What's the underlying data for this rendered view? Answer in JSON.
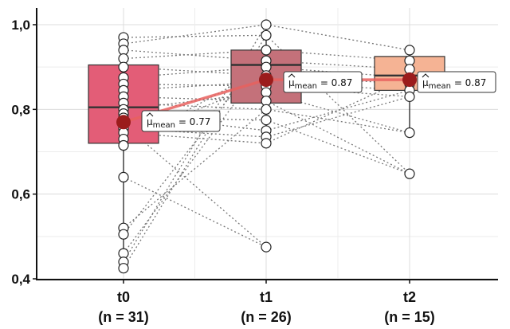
{
  "chart_data": {
    "type": "box",
    "title": "",
    "xlabel": "",
    "ylabel": "",
    "ylim": [
      0.4,
      1.0
    ],
    "yticks": [
      0.4,
      0.6,
      0.8,
      1.0
    ],
    "ytick_labels": [
      "0,4",
      "0,6",
      "0,8",
      "1,0"
    ],
    "grid": true,
    "groups": [
      {
        "label": "t0",
        "n_label": "(n = 31)",
        "color": "#e35d77",
        "whisker_low": 0.43,
        "q1": 0.72,
        "median": 0.805,
        "q3": 0.905,
        "whisker_high": 0.97,
        "mean": 0.77,
        "mean_label_prefix": "μ",
        "mean_label_sub": "mean",
        "mean_label_value": "= 0.77",
        "points": [
          0.97,
          0.955,
          0.94,
          0.92,
          0.9,
          0.875,
          0.86,
          0.845,
          0.83,
          0.815,
          0.8,
          0.79,
          0.78,
          0.765,
          0.755,
          0.745,
          0.73,
          0.715,
          0.64,
          0.52,
          0.505,
          0.46,
          0.44,
          0.425
        ]
      },
      {
        "label": "t1",
        "n_label": "(n = 26)",
        "color": "#c4717a",
        "whisker_low": 0.72,
        "q1": 0.815,
        "median": 0.905,
        "q3": 0.94,
        "whisker_high": 1.0,
        "mean": 0.87,
        "mean_label_prefix": "μ",
        "mean_label_sub": "mean",
        "mean_label_value": "= 0.87",
        "points": [
          1.0,
          0.975,
          0.94,
          0.915,
          0.9,
          0.88,
          0.865,
          0.855,
          0.84,
          0.82,
          0.8,
          0.775,
          0.75,
          0.735,
          0.72,
          0.475
        ]
      },
      {
        "label": "t2",
        "n_label": "(n = 15)",
        "color": "#f5b394",
        "whisker_low": 0.745,
        "q1": 0.845,
        "median": 0.88,
        "q3": 0.925,
        "whisker_high": 0.94,
        "mean": 0.87,
        "mean_label_prefix": "μ",
        "mean_label_sub": "mean",
        "mean_label_value": "= 0.87",
        "points": [
          0.94,
          0.915,
          0.895,
          0.875,
          0.86,
          0.845,
          0.83,
          0.745,
          0.648
        ]
      }
    ],
    "colors": {
      "mean_point": "#9b1c1c",
      "mean_line": "#e8605e",
      "connector": "#777777"
    }
  }
}
